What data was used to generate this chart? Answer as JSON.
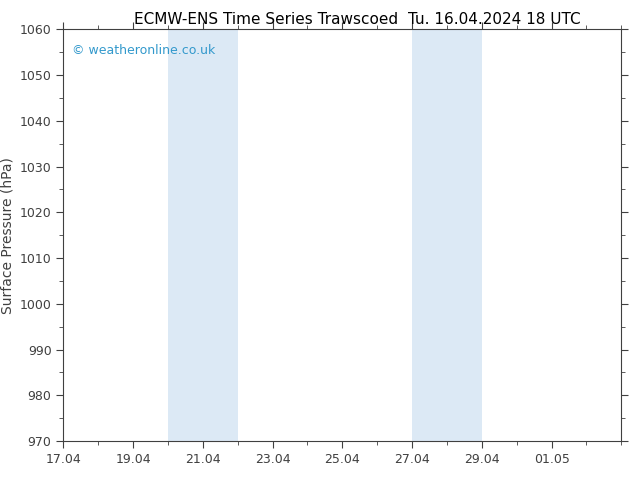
{
  "title_left": "ECMW-ENS Time Series Trawscoed",
  "title_right": "Tu. 16.04.2024 18 UTC",
  "ylabel": "Surface Pressure (hPa)",
  "ylim": [
    970,
    1060
  ],
  "yticks": [
    970,
    980,
    990,
    1000,
    1010,
    1020,
    1030,
    1040,
    1050,
    1060
  ],
  "xlim": [
    17.0,
    33.0
  ],
  "xtick_positions": [
    17,
    19,
    21,
    23,
    25,
    27,
    29,
    31
  ],
  "xtick_labels": [
    "17.04",
    "19.04",
    "21.04",
    "23.04",
    "25.04",
    "27.04",
    "29.04",
    "01.05"
  ],
  "shaded_bands": [
    {
      "x_start": 20.0,
      "x_end": 22.0
    },
    {
      "x_start": 27.0,
      "x_end": 28.0
    },
    {
      "x_start": 28.0,
      "x_end": 29.0
    }
  ],
  "shade_color": "#dce9f5",
  "background_color": "#ffffff",
  "watermark_text": "© weatheronline.co.uk",
  "watermark_color": "#3399cc",
  "title_fontsize": 11,
  "ylabel_fontsize": 10,
  "tick_fontsize": 9,
  "watermark_fontsize": 9,
  "spine_color": "#404040",
  "tick_color": "#404040"
}
